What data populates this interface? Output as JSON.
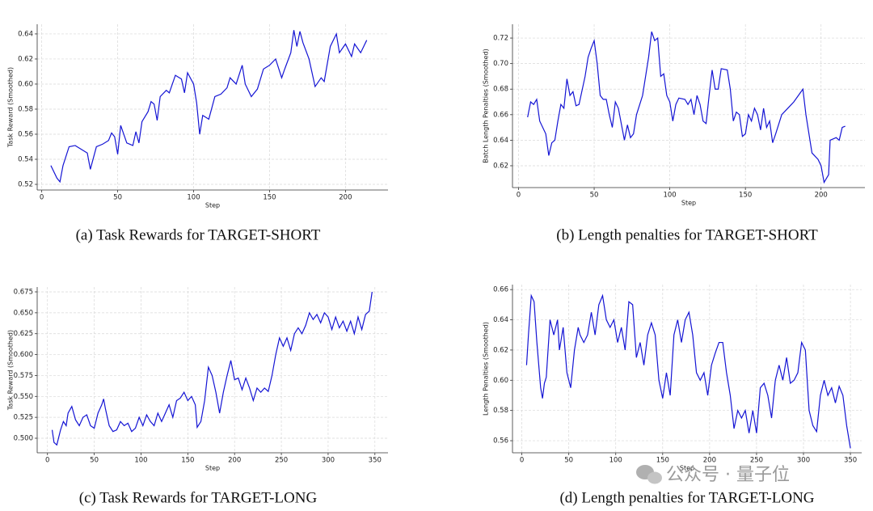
{
  "chart_data": [
    {
      "type": "line",
      "caption": "(a) Task Rewards for TARGET-SHORT",
      "xlabel": "Step",
      "ylabel": "Task Reward (Smoothed)",
      "color": "#1414d4",
      "grid": true,
      "xlim": [
        -3,
        228
      ],
      "ylim": [
        0.5155,
        0.6477
      ],
      "xticks": [
        0,
        50,
        100,
        150,
        200
      ],
      "yticks": [
        0.52,
        0.54,
        0.56,
        0.58,
        {
          "value": 0.6,
          "label": "0.60"
        },
        0.62,
        0.64
      ],
      "x": [
        6,
        10,
        12,
        14,
        18,
        22,
        26,
        30,
        32,
        36,
        40,
        44,
        46,
        48,
        50,
        52,
        56,
        60,
        62,
        64,
        66,
        70,
        72,
        74,
        76,
        78,
        82,
        84,
        88,
        92,
        94,
        96,
        100,
        102,
        104,
        106,
        110,
        114,
        118,
        122,
        124,
        128,
        132,
        134,
        138,
        142,
        146,
        150,
        154,
        158,
        160,
        164,
        166,
        168,
        170,
        172,
        176,
        180,
        184,
        186,
        190,
        194,
        196,
        200,
        204,
        206,
        210,
        212,
        214
      ],
      "values": [
        0.535,
        0.525,
        0.522,
        0.535,
        0.55,
        0.551,
        0.548,
        0.545,
        0.532,
        0.55,
        0.552,
        0.555,
        0.561,
        0.558,
        0.544,
        0.567,
        0.553,
        0.551,
        0.562,
        0.553,
        0.57,
        0.578,
        0.586,
        0.584,
        0.571,
        0.59,
        0.595,
        0.593,
        0.607,
        0.604,
        0.593,
        0.609,
        0.6,
        0.585,
        0.56,
        0.575,
        0.572,
        0.59,
        0.592,
        0.597,
        0.605,
        0.6,
        0.615,
        0.6,
        0.59,
        0.596,
        0.612,
        0.615,
        0.62,
        0.605,
        0.612,
        0.625,
        0.643,
        0.63,
        0.642,
        0.633,
        0.62,
        0.598,
        0.605,
        0.602,
        0.63,
        0.64,
        0.625,
        0.632,
        0.622,
        0.632,
        0.625,
        0.63,
        0.635
      ]
    },
    {
      "type": "line",
      "caption": "(b) Length penalties for TARGET-SHORT",
      "xlabel": "Step",
      "ylabel": "Batch Length Penalties (Smoothed)",
      "color": "#1414d4",
      "grid": true,
      "xlim": [
        -4,
        229
      ],
      "ylim": [
        0.6029,
        0.7308
      ],
      "xticks": [
        0,
        50,
        100,
        150,
        200
      ],
      "yticks": [
        0.62,
        0.64,
        0.66,
        0.68,
        {
          "value": 0.7,
          "label": "0.70"
        },
        0.72
      ],
      "x": [
        6,
        8,
        10,
        12,
        14,
        18,
        20,
        22,
        24,
        26,
        28,
        30,
        32,
        34,
        36,
        38,
        40,
        44,
        46,
        48,
        50,
        52,
        54,
        56,
        58,
        60,
        62,
        64,
        66,
        70,
        72,
        74,
        76,
        78,
        82,
        84,
        86,
        88,
        90,
        92,
        94,
        96,
        98,
        100,
        102,
        104,
        106,
        110,
        112,
        114,
        116,
        118,
        120,
        122,
        124,
        126,
        128,
        130,
        132,
        134,
        138,
        140,
        142,
        144,
        146,
        148,
        150,
        152,
        154,
        156,
        158,
        160,
        162,
        164,
        166,
        168,
        170,
        174,
        178,
        182,
        188,
        190,
        194,
        198,
        200,
        202,
        205,
        206,
        210,
        212,
        214,
        216
      ],
      "values": [
        0.658,
        0.67,
        0.668,
        0.672,
        0.655,
        0.645,
        0.628,
        0.638,
        0.64,
        0.655,
        0.668,
        0.665,
        0.688,
        0.675,
        0.678,
        0.667,
        0.668,
        0.69,
        0.705,
        0.712,
        0.718,
        0.7,
        0.675,
        0.672,
        0.672,
        0.66,
        0.65,
        0.67,
        0.665,
        0.64,
        0.652,
        0.642,
        0.645,
        0.66,
        0.675,
        0.69,
        0.705,
        0.725,
        0.718,
        0.72,
        0.69,
        0.692,
        0.675,
        0.67,
        0.655,
        0.668,
        0.673,
        0.672,
        0.668,
        0.672,
        0.66,
        0.675,
        0.668,
        0.655,
        0.653,
        0.675,
        0.695,
        0.68,
        0.68,
        0.696,
        0.695,
        0.68,
        0.655,
        0.662,
        0.66,
        0.643,
        0.645,
        0.66,
        0.655,
        0.665,
        0.66,
        0.648,
        0.665,
        0.65,
        0.655,
        0.638,
        0.645,
        0.66,
        0.665,
        0.67,
        0.68,
        0.66,
        0.63,
        0.625,
        0.62,
        0.607,
        0.613,
        0.64,
        0.642,
        0.64,
        0.65,
        0.651
      ]
    },
    {
      "type": "line",
      "caption": "(c) Task Rewards for TARGET-LONG",
      "xlabel": "Step",
      "ylabel": "Task Reward (Smoothed)",
      "color": "#1414d4",
      "grid": true,
      "xlim": [
        -11,
        364
      ],
      "ylim": [
        0.4826,
        0.6808
      ],
      "xticks": [
        0,
        50,
        100,
        150,
        200,
        250,
        300,
        350
      ],
      "yticks": [
        {
          "value": 0.5,
          "label": "0.500"
        },
        0.525,
        {
          "value": 0.55,
          "label": "0.550"
        },
        0.575,
        {
          "value": 0.6,
          "label": "0.600"
        },
        0.625,
        {
          "value": 0.65,
          "label": "0.650"
        },
        0.675
      ],
      "x": [
        5,
        7,
        10,
        14,
        17,
        20,
        22,
        26,
        30,
        34,
        38,
        42,
        46,
        50,
        54,
        58,
        60,
        62,
        66,
        70,
        74,
        78,
        82,
        86,
        90,
        94,
        98,
        102,
        106,
        110,
        114,
        118,
        122,
        126,
        130,
        134,
        138,
        142,
        146,
        150,
        154,
        158,
        160,
        164,
        168,
        172,
        176,
        180,
        184,
        188,
        192,
        196,
        200,
        204,
        208,
        212,
        216,
        220,
        224,
        228,
        232,
        236,
        240,
        244,
        248,
        252,
        256,
        260,
        264,
        268,
        272,
        276,
        280,
        284,
        288,
        292,
        296,
        300,
        304,
        308,
        312,
        316,
        320,
        324,
        328,
        332,
        336,
        340,
        344,
        347
      ],
      "values": [
        0.51,
        0.495,
        0.492,
        0.51,
        0.52,
        0.515,
        0.53,
        0.538,
        0.522,
        0.515,
        0.525,
        0.528,
        0.515,
        0.512,
        0.53,
        0.54,
        0.547,
        0.535,
        0.515,
        0.508,
        0.51,
        0.52,
        0.515,
        0.518,
        0.508,
        0.512,
        0.525,
        0.515,
        0.528,
        0.52,
        0.515,
        0.53,
        0.52,
        0.53,
        0.54,
        0.525,
        0.545,
        0.548,
        0.555,
        0.545,
        0.55,
        0.54,
        0.513,
        0.52,
        0.545,
        0.585,
        0.575,
        0.555,
        0.53,
        0.555,
        0.575,
        0.593,
        0.57,
        0.572,
        0.558,
        0.572,
        0.56,
        0.545,
        0.56,
        0.555,
        0.56,
        0.556,
        0.575,
        0.6,
        0.62,
        0.61,
        0.62,
        0.605,
        0.625,
        0.632,
        0.625,
        0.635,
        0.65,
        0.642,
        0.648,
        0.638,
        0.65,
        0.645,
        0.63,
        0.645,
        0.632,
        0.64,
        0.628,
        0.64,
        0.625,
        0.645,
        0.63,
        0.648,
        0.652,
        0.675
      ]
    },
    {
      "type": "line",
      "caption": "(d) Length penalties for TARGET-LONG",
      "xlabel": "Step",
      "ylabel": "Length Penalties (Smoothed)",
      "color": "#1414d4",
      "grid": true,
      "xlim": [
        -10,
        362
      ],
      "ylim": [
        0.552,
        0.6633
      ],
      "xticks": [
        0,
        50,
        100,
        150,
        200,
        250,
        300,
        350
      ],
      "yticks": [
        0.56,
        0.58,
        {
          "value": 0.6,
          "label": "0.60"
        },
        0.62,
        0.64,
        0.66
      ],
      "x": [
        5,
        7,
        10,
        13,
        16,
        20,
        22,
        24,
        26,
        30,
        34,
        38,
        40,
        44,
        48,
        52,
        56,
        60,
        62,
        66,
        70,
        74,
        78,
        82,
        86,
        90,
        94,
        98,
        102,
        106,
        110,
        114,
        118,
        122,
        126,
        130,
        134,
        138,
        142,
        146,
        150,
        154,
        158,
        162,
        166,
        170,
        174,
        178,
        182,
        186,
        190,
        194,
        198,
        202,
        206,
        210,
        214,
        218,
        222,
        226,
        230,
        234,
        238,
        242,
        246,
        250,
        254,
        258,
        262,
        266,
        270,
        274,
        278,
        282,
        286,
        290,
        294,
        298,
        302,
        306,
        310,
        314,
        318,
        322,
        326,
        330,
        334,
        338,
        342,
        346,
        350
      ],
      "values": [
        0.61,
        0.63,
        0.656,
        0.652,
        0.625,
        0.595,
        0.588,
        0.598,
        0.602,
        0.64,
        0.63,
        0.64,
        0.62,
        0.635,
        0.605,
        0.595,
        0.62,
        0.635,
        0.63,
        0.625,
        0.63,
        0.645,
        0.63,
        0.65,
        0.656,
        0.64,
        0.635,
        0.64,
        0.625,
        0.635,
        0.62,
        0.652,
        0.65,
        0.615,
        0.625,
        0.61,
        0.63,
        0.638,
        0.63,
        0.6,
        0.588,
        0.605,
        0.59,
        0.63,
        0.64,
        0.625,
        0.64,
        0.645,
        0.63,
        0.605,
        0.6,
        0.605,
        0.59,
        0.61,
        0.618,
        0.625,
        0.625,
        0.605,
        0.59,
        0.568,
        0.58,
        0.575,
        0.58,
        0.565,
        0.58,
        0.565,
        0.595,
        0.598,
        0.59,
        0.575,
        0.6,
        0.61,
        0.6,
        0.615,
        0.598,
        0.6,
        0.605,
        0.625,
        0.62,
        0.58,
        0.57,
        0.566,
        0.59,
        0.6,
        0.59,
        0.595,
        0.585,
        0.596,
        0.59,
        0.57,
        0.555
      ]
    }
  ],
  "watermark": "公众号 · 量子位"
}
